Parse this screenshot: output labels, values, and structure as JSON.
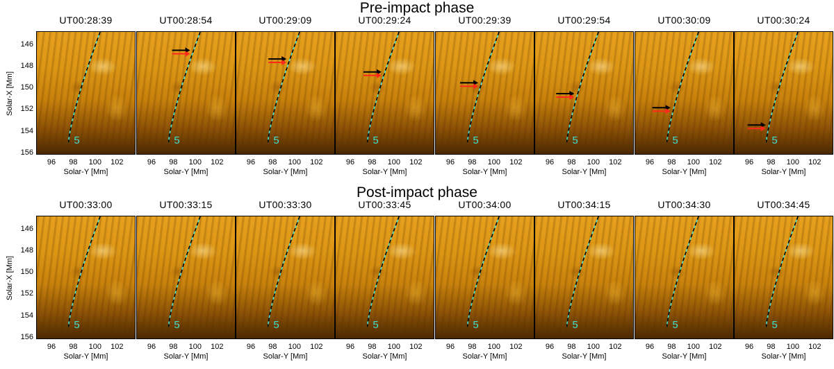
{
  "phases": [
    {
      "title": "Pre-impact phase",
      "times": [
        "UT00:28:39",
        "UT00:28:54",
        "UT00:29:09",
        "UT00:29:24",
        "UT00:29:39",
        "UT00:29:54",
        "UT00:30:09",
        "UT00:30:24"
      ],
      "arrow_solar_x": [
        null,
        146.5,
        147.3,
        148.5,
        149.5,
        150.5,
        151.8,
        153.4
      ]
    },
    {
      "title": "Post-impact phase",
      "times": [
        "UT00:33:00",
        "UT00:33:15",
        "UT00:33:30",
        "UT00:33:45",
        "UT00:34:00",
        "UT00:34:15",
        "UT00:34:30",
        "UT00:34:45"
      ],
      "arrow_solar_x": [
        null,
        null,
        null,
        null,
        null,
        null,
        null,
        null
      ]
    }
  ],
  "slit_label": "5",
  "xlabel": "Solar-Y [Mm]",
  "ylabel": "Solar-X [Mm]",
  "xticks": [
    "96",
    "98",
    "100",
    "102"
  ],
  "yticks": [
    "146",
    "148",
    "150",
    "152",
    "154",
    "156"
  ],
  "x_range": [
    94.6,
    103.7
  ],
  "y_range": [
    144.8,
    156.2
  ],
  "colors": {
    "slit_cyan": "#40e0d0",
    "slit_dash": "#000000",
    "arrow_black": "#000000",
    "arrow_red": "#ff2a1a",
    "label": "#40e0d0"
  }
}
